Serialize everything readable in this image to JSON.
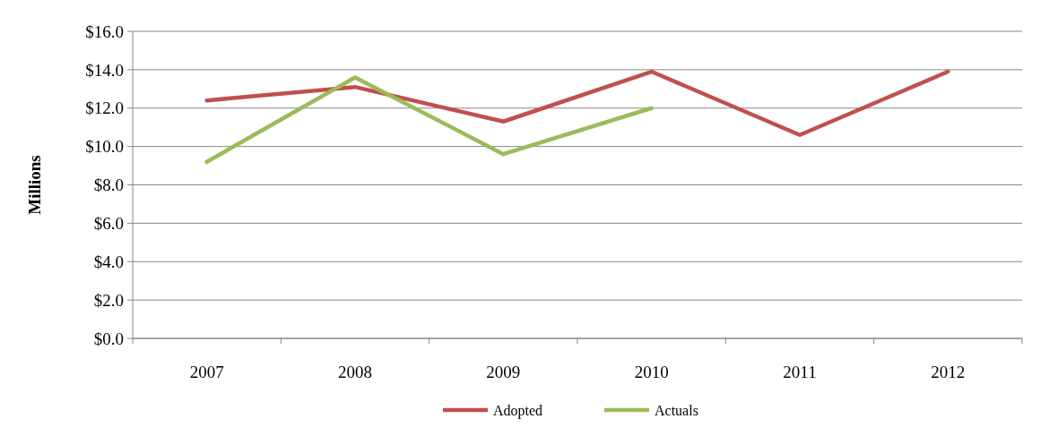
{
  "chart_data": {
    "type": "line",
    "ylabel": "Millions",
    "categories": [
      "2007",
      "2008",
      "2009",
      "2010",
      "2011",
      "2012"
    ],
    "series": [
      {
        "name": "Adopted",
        "color": "#c0504d",
        "values": [
          12.4,
          13.1,
          11.3,
          13.9,
          10.6,
          13.9
        ]
      },
      {
        "name": "Actuals",
        "color": "#9bbb59",
        "values": [
          9.2,
          13.6,
          9.6,
          12.0,
          null,
          null
        ]
      }
    ],
    "ylim": [
      0,
      16
    ],
    "yticks": [
      {
        "value": 0,
        "label": "$0.0"
      },
      {
        "value": 2,
        "label": "$2.0"
      },
      {
        "value": 4,
        "label": "$4.0"
      },
      {
        "value": 6,
        "label": "$6.0"
      },
      {
        "value": 8,
        "label": "$8.0"
      },
      {
        "value": 10,
        "label": "$10.0"
      },
      {
        "value": 12,
        "label": "$12.0"
      },
      {
        "value": 14,
        "label": "$14.0"
      },
      {
        "value": 16,
        "label": "$16.0"
      }
    ],
    "grid": "y",
    "legend": "bottom",
    "marker": "none",
    "line_style": "solid"
  }
}
